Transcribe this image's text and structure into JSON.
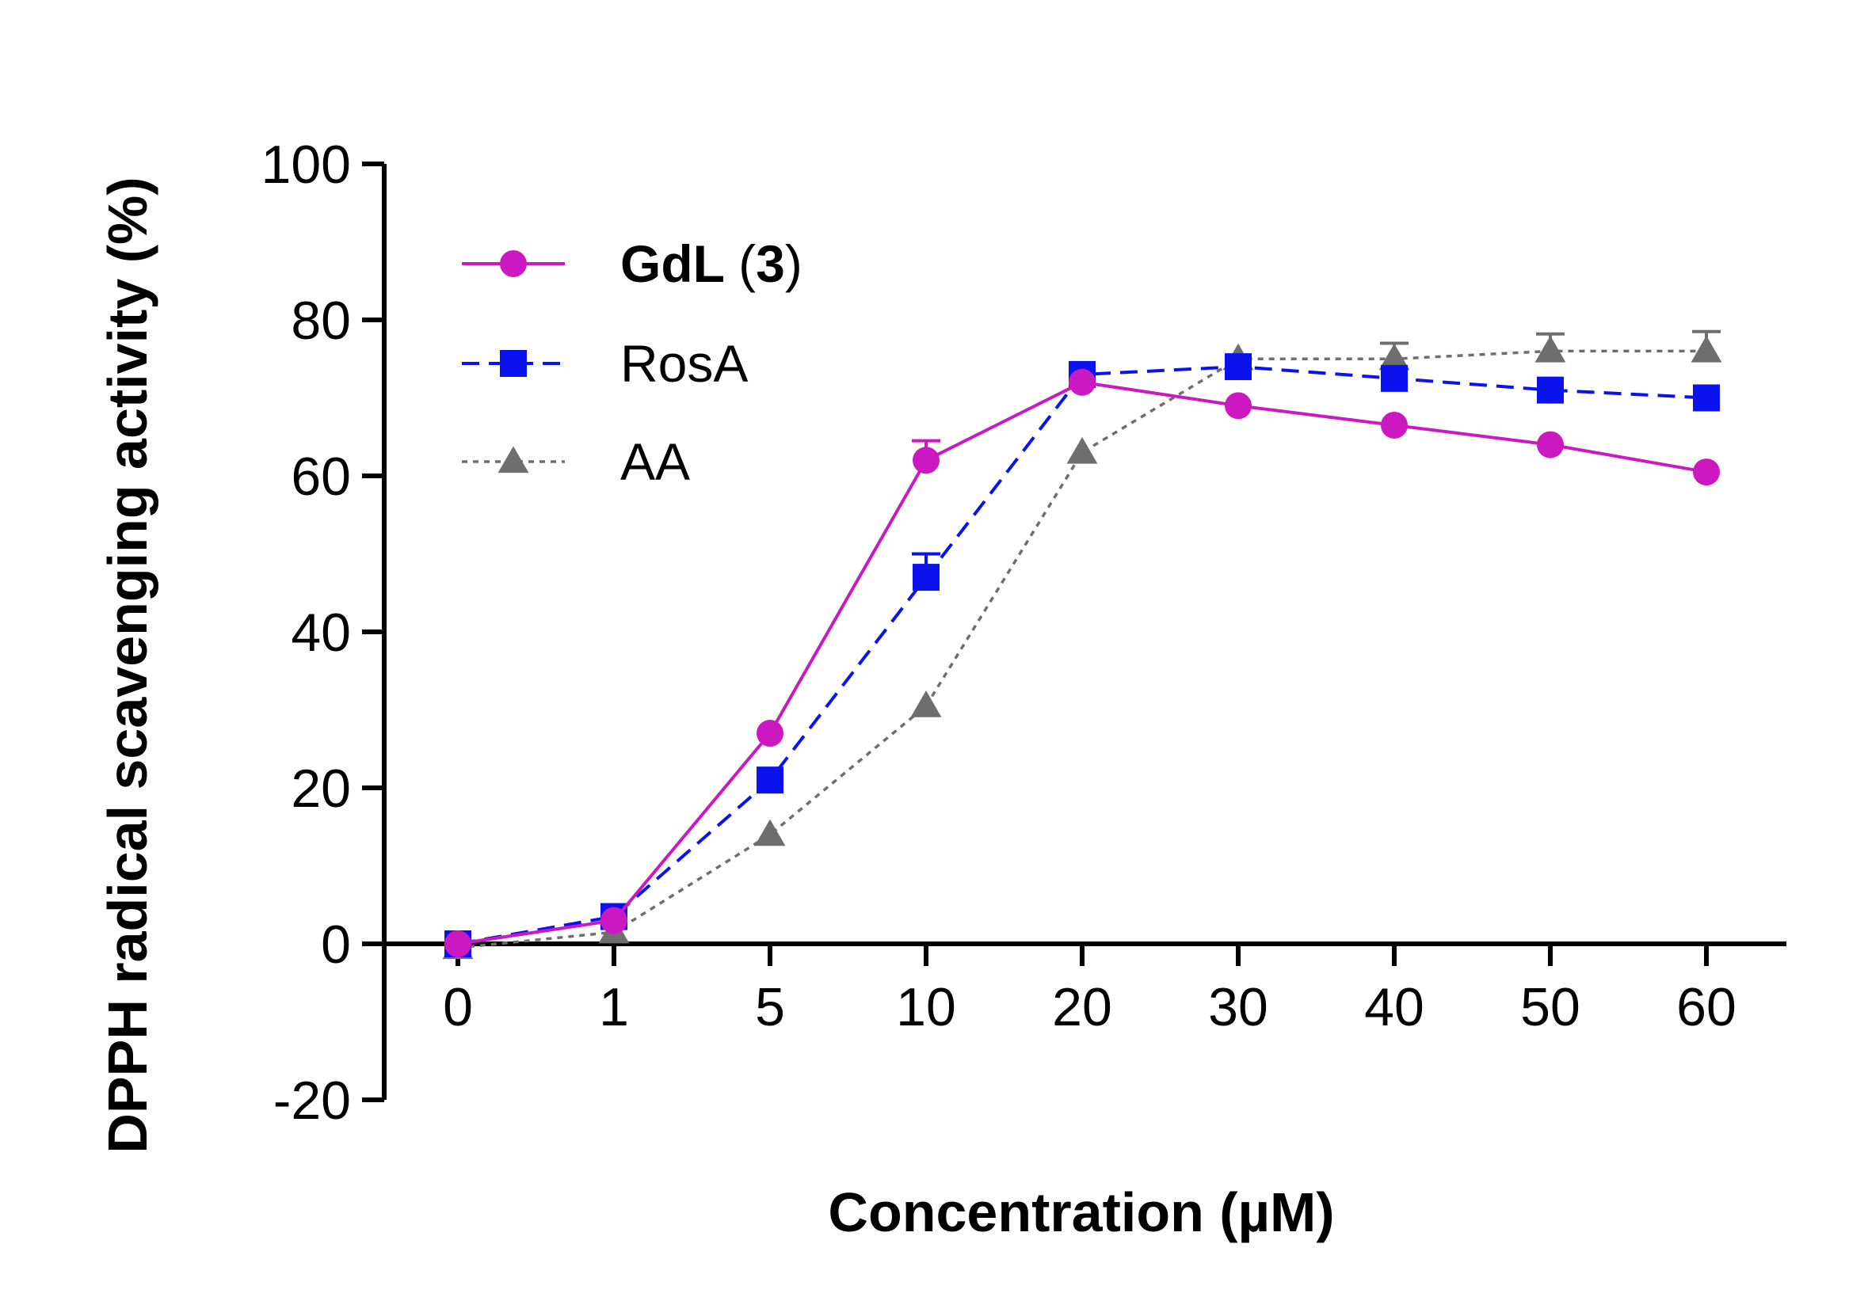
{
  "chart_data": {
    "type": "line",
    "title": "",
    "xlabel": "Concentration (µM)",
    "ylabel": "DPPH radical scavenging activity (%)",
    "categories": [
      "0",
      "1",
      "5",
      "10",
      "20",
      "30",
      "40",
      "50",
      "60"
    ],
    "ylim": [
      -20,
      100
    ],
    "yticks": [
      -20,
      0,
      20,
      40,
      60,
      80,
      100
    ],
    "legend_position": "top-left",
    "series": [
      {
        "name": "GdL",
        "name_suffix": "(3)",
        "name_bold_part": "3",
        "marker": "circle",
        "line_style": "solid",
        "color": "#cc18c1",
        "values": [
          0,
          3,
          27,
          62,
          72,
          69,
          66.5,
          64,
          60.5
        ],
        "errors": [
          0,
          0,
          0,
          2.5,
          0,
          0,
          0,
          0,
          0
        ]
      },
      {
        "name": "RosA",
        "marker": "square",
        "line_style": "dashed",
        "color": "#0a12ee",
        "values": [
          0,
          3.5,
          21,
          47,
          73,
          74,
          72.5,
          71,
          70
        ],
        "errors": [
          0,
          0,
          0,
          3,
          0,
          0,
          0,
          0,
          0
        ]
      },
      {
        "name": "AA",
        "marker": "triangle",
        "line_style": "dotted",
        "color": "#6e6e6e",
        "values": [
          -0.5,
          1.5,
          14,
          30.5,
          63,
          75,
          75,
          76,
          76
        ],
        "errors": [
          0,
          0,
          0,
          0,
          0,
          0,
          2,
          2.2,
          2.5
        ]
      }
    ]
  }
}
